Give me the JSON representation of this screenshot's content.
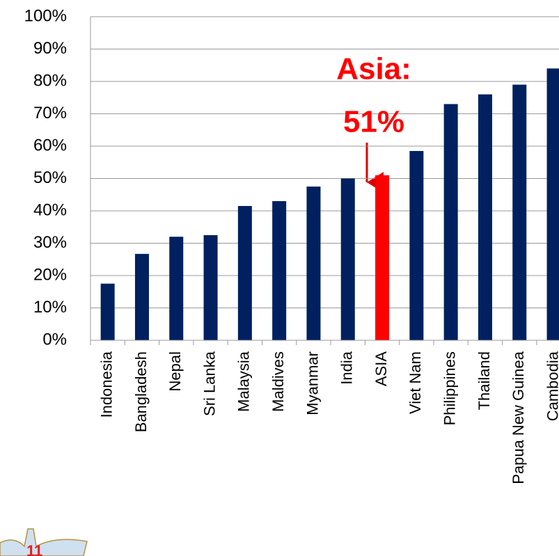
{
  "chart_data": {
    "type": "bar",
    "categories": [
      "Indonesia",
      "Bangladesh",
      "Nepal",
      "Sri Lanka",
      "Malaysia",
      "Maldives",
      "Myanmar",
      "India",
      "ASIA",
      "Viet Nam",
      "Philippines",
      "Thailand",
      "Papua New Guinea",
      "Cambodia"
    ],
    "values": [
      17.5,
      26.7,
      32,
      32.5,
      41.5,
      43,
      47.5,
      50,
      51,
      58.5,
      73,
      76,
      79,
      84
    ],
    "colors": [
      "#002060",
      "#002060",
      "#002060",
      "#002060",
      "#002060",
      "#002060",
      "#002060",
      "#002060",
      "#ff0000",
      "#002060",
      "#002060",
      "#002060",
      "#002060",
      "#002060"
    ],
    "ylim": [
      0,
      100
    ],
    "yticks": [
      {
        "value": 0,
        "label": "0%"
      },
      {
        "value": 10,
        "label": "10%"
      },
      {
        "value": 20,
        "label": "20%"
      },
      {
        "value": 30,
        "label": "30%"
      },
      {
        "value": 40,
        "label": "40%"
      },
      {
        "value": 50,
        "label": "50%"
      },
      {
        "value": 60,
        "label": "60%"
      },
      {
        "value": 70,
        "label": "70%"
      },
      {
        "value": 80,
        "label": "80%"
      },
      {
        "value": 90,
        "label": "90%"
      },
      {
        "value": 100,
        "label": "100%"
      }
    ],
    "grid": true,
    "annotation": [
      "Asia:",
      "51%"
    ]
  }
}
